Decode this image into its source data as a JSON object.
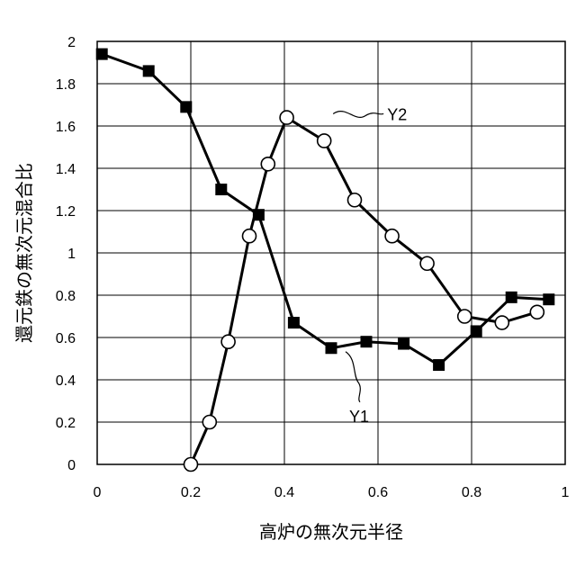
{
  "chart_data": {
    "type": "line",
    "title": "",
    "xlabel": "高炉の無次元半径",
    "ylabel": "還元鉄の無次元混合比",
    "xlim": [
      0,
      1
    ],
    "ylim": [
      0,
      2
    ],
    "x_ticks": [
      "0",
      "0.2",
      "0.4",
      "0.6",
      "0.8",
      "1"
    ],
    "y_ticks": [
      "0",
      "0.2",
      "0.4",
      "0.6",
      "0.8",
      "1",
      "1.2",
      "1.4",
      "1.6",
      "1.8",
      "2"
    ],
    "grid": true,
    "legend": "none",
    "series": [
      {
        "name": "Y1",
        "marker": "filled-square",
        "x": [
          0.01,
          0.11,
          0.19,
          0.265,
          0.345,
          0.42,
          0.5,
          0.575,
          0.655,
          0.73,
          0.81,
          0.885,
          0.965
        ],
        "y": [
          1.94,
          1.86,
          1.69,
          1.3,
          1.18,
          0.67,
          0.55,
          0.58,
          0.57,
          0.47,
          0.63,
          0.79,
          0.78
        ]
      },
      {
        "name": "Y2",
        "marker": "open-circle",
        "x": [
          0.2,
          0.24,
          0.28,
          0.325,
          0.365,
          0.405,
          0.485,
          0.55,
          0.63,
          0.705,
          0.785,
          0.865,
          0.94
        ],
        "y": [
          0.0,
          0.2,
          0.58,
          1.08,
          1.42,
          1.64,
          1.53,
          1.25,
          1.08,
          0.95,
          0.7,
          0.67,
          0.72
        ]
      }
    ],
    "annotations": [
      {
        "text": "Y1",
        "series": "Y1"
      },
      {
        "text": "Y2",
        "series": "Y2"
      }
    ],
    "colors": {
      "line": "#000000",
      "grid": "#000000",
      "marker_fill_open": "#ffffff"
    }
  }
}
